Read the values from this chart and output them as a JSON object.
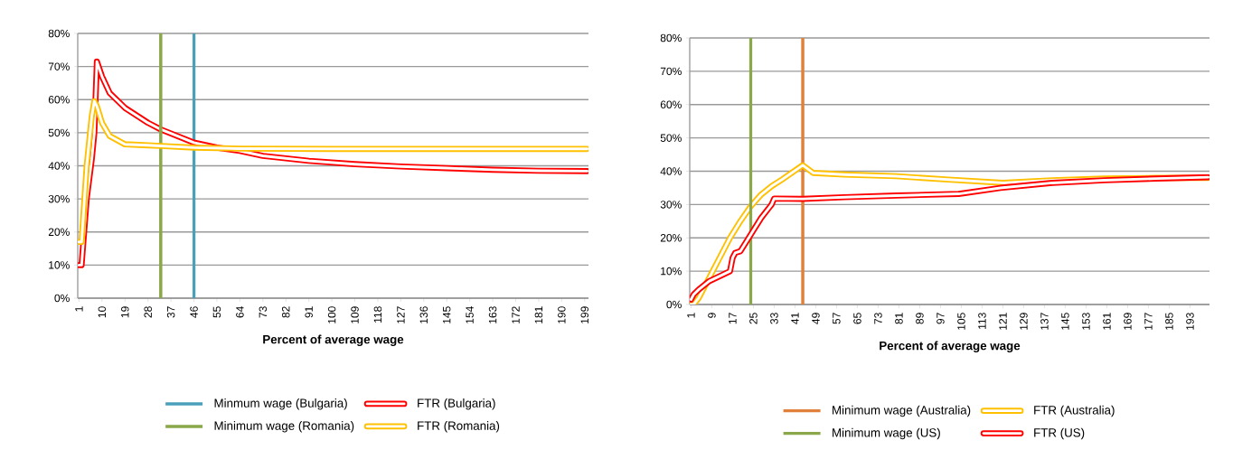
{
  "chart_data": [
    {
      "type": "line",
      "xlabel": "Percent of average wage",
      "xlim": [
        0.5,
        200.5
      ],
      "xticks": [
        1,
        10,
        19,
        28,
        37,
        46,
        55,
        64,
        73,
        82,
        91,
        100,
        109,
        118,
        127,
        136,
        145,
        154,
        163,
        172,
        181,
        190,
        199
      ],
      "ylim": [
        0,
        80
      ],
      "yticks": [
        {
          "value": 0,
          "label": "0%"
        },
        {
          "value": 10,
          "label": "10%"
        },
        {
          "value": 20,
          "label": "20%"
        },
        {
          "value": 30,
          "label": "30%"
        },
        {
          "value": 40,
          "label": "40%"
        },
        {
          "value": 50,
          "label": "50%"
        },
        {
          "value": 60,
          "label": "60%"
        },
        {
          "value": 70,
          "label": "70%"
        },
        {
          "value": 80,
          "label": "80%"
        }
      ],
      "grid": "y",
      "legend": "bottom",
      "marker": "none",
      "line_style": "solid",
      "ref_lines": [
        {
          "axis": "x",
          "value": 46,
          "label": "Minmum wage (Bulgaria)",
          "color": "#4aa0bb"
        },
        {
          "axis": "x",
          "value": 33,
          "label": "Minimum wage (Romania)",
          "color": "#8aa84a"
        }
      ],
      "series": [
        {
          "name": "FTR (Bulgaria)",
          "color": "#ff0000",
          "x": [
            1,
            2,
            4,
            6,
            7,
            8,
            10,
            13,
            19,
            28,
            33,
            46,
            55,
            64,
            73,
            91,
            109,
            127,
            145,
            163,
            181,
            200
          ],
          "values": [
            10,
            10,
            30,
            42,
            50,
            71.5,
            67,
            62,
            57.5,
            53,
            51,
            47,
            45.5,
            44.5,
            43,
            41.5,
            40.5,
            39.8,
            39.3,
            38.8,
            38.5,
            38.4
          ]
        },
        {
          "name": "FTR (Romania)",
          "color": "#ffc000",
          "x": [
            1,
            2,
            4,
            6,
            7,
            8,
            10,
            13,
            19,
            28,
            33,
            46,
            64,
            100,
            150,
            200
          ],
          "values": [
            17,
            17,
            40,
            55,
            59.5,
            58,
            53,
            49,
            46.5,
            46.2,
            46,
            45.5,
            45.2,
            45.1,
            45.1,
            45.1
          ]
        }
      ]
    },
    {
      "type": "line",
      "xlabel": "Percent of average wage",
      "xlim": [
        0.5,
        200.5
      ],
      "xticks": [
        1,
        9,
        17,
        25,
        33,
        41,
        49,
        57,
        65,
        73,
        81,
        89,
        97,
        105,
        113,
        121,
        129,
        137,
        145,
        153,
        161,
        169,
        177,
        185,
        193
      ],
      "ylim": [
        0,
        80
      ],
      "yticks": [
        {
          "value": 0,
          "label": "0%"
        },
        {
          "value": 10,
          "label": "10%"
        },
        {
          "value": 20,
          "label": "20%"
        },
        {
          "value": 30,
          "label": "30%"
        },
        {
          "value": 40,
          "label": "40%"
        },
        {
          "value": 50,
          "label": "50%"
        },
        {
          "value": 60,
          "label": "60%"
        },
        {
          "value": 70,
          "label": "70%"
        },
        {
          "value": 80,
          "label": "80%"
        }
      ],
      "grid": "y",
      "legend": "bottom",
      "marker": "none",
      "line_style": "solid",
      "ref_lines": [
        {
          "axis": "x",
          "value": 44,
          "label": "Minimum wage (Australia)",
          "color": "#e0803a"
        },
        {
          "axis": "x",
          "value": 24,
          "label": "Minimum wage (US)",
          "color": "#8aa84a"
        }
      ],
      "series": [
        {
          "name": "FTR (Australia)",
          "color": "#ffc000",
          "x": [
            1,
            2,
            4,
            8,
            12,
            16,
            20,
            24,
            28,
            32,
            36,
            44,
            48,
            60,
            80,
            100,
            121,
            140,
            160,
            180,
            200
          ],
          "values": [
            0,
            0,
            2,
            8,
            14,
            20,
            25,
            29.5,
            33,
            35.5,
            37.5,
            41.8,
            39.5,
            39,
            38.5,
            37.5,
            36.5,
            37.3,
            37.8,
            38,
            38
          ]
        },
        {
          "name": "FTR (US)",
          "color": "#ff0000",
          "x": [
            1,
            2,
            4,
            8,
            12,
            16,
            17,
            18,
            20,
            24,
            28,
            31,
            32,
            33,
            44,
            60,
            80,
            104,
            120,
            140,
            160,
            180,
            200
          ],
          "values": [
            1.5,
            3,
            4.5,
            7,
            8.5,
            10,
            14,
            15.5,
            16,
            21,
            26,
            29,
            30,
            31.8,
            31.7,
            32.2,
            32.7,
            33.2,
            35,
            36.5,
            37.3,
            37.8,
            38.2
          ]
        }
      ]
    }
  ]
}
